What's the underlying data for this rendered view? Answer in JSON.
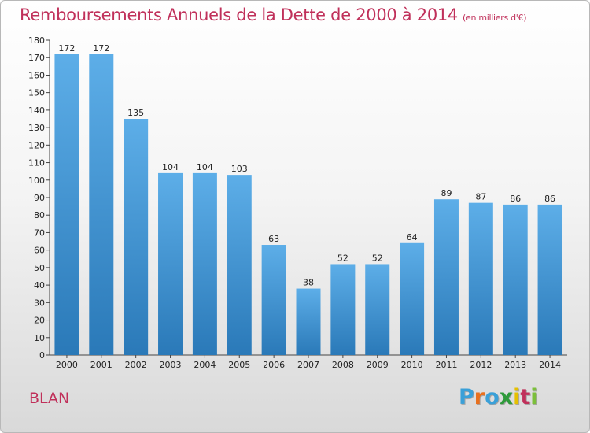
{
  "header": {
    "title": "Remboursements Annuels de la Dette de 2000 à 2014",
    "subtitle": "(en milliers d'€)"
  },
  "footer": {
    "commune": "BLAN",
    "logo_text": "Proxiti",
    "logo_colors": [
      "#3aa0d8",
      "#e8701e",
      "#3aa0d8",
      "#2e9a3a",
      "#e5c000",
      "#c0305a",
      "#7bbf3a"
    ]
  },
  "chart_data": {
    "type": "bar",
    "title": "Remboursements Annuels de la Dette de 2000 à 2014",
    "subtitle": "(en milliers d'€)",
    "xlabel": "",
    "ylabel": "",
    "categories": [
      "2000",
      "2001",
      "2002",
      "2003",
      "2004",
      "2005",
      "2006",
      "2007",
      "2008",
      "2009",
      "2010",
      "2011",
      "2012",
      "2013",
      "2014"
    ],
    "values": [
      172,
      172,
      135,
      104,
      104,
      103,
      63,
      38,
      52,
      52,
      64,
      89,
      87,
      86,
      86
    ],
    "ylim": [
      0,
      180
    ],
    "ytick_step": 10,
    "grid": false,
    "legend": "none",
    "bar_color_top": "#5daee8",
    "bar_color_bottom": "#2a79b8"
  }
}
